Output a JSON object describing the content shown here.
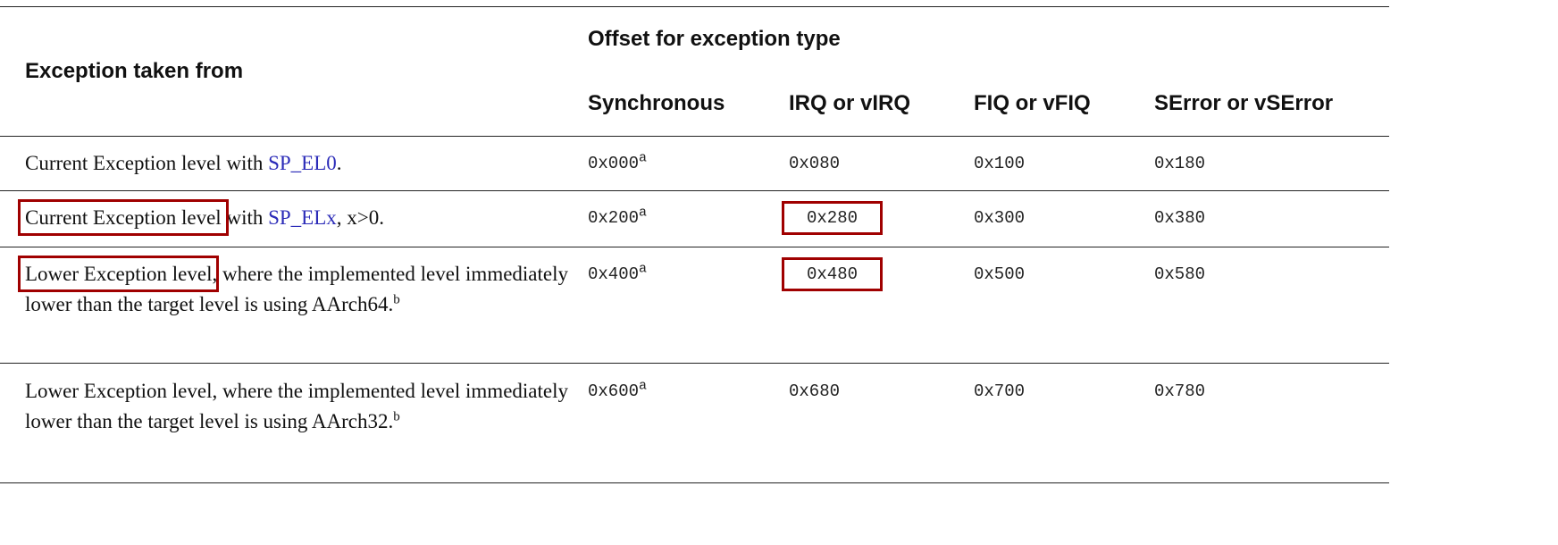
{
  "table": {
    "row_header": "Exception taken from",
    "group_header": "Offset for exception type",
    "columns": [
      "Synchronous",
      "IRQ or vIRQ",
      "FIQ or vFIQ",
      "SError or vSError"
    ],
    "rows": [
      {
        "source": [
          "Current Exception level with ",
          "SP_EL0",
          "."
        ],
        "source_note": null,
        "offsets": [
          "0x000",
          "0x080",
          "0x100",
          "0x180"
        ],
        "sync_note": "a"
      },
      {
        "source": [
          "Current Exception level",
          " with ",
          "SP_ELx",
          ", x>0."
        ],
        "source_note": null,
        "offsets": [
          "0x200",
          "0x280",
          "0x300",
          "0x380"
        ],
        "sync_note": "a"
      },
      {
        "source": [
          "Lower Exception level",
          ", where the implemented level immediately lower than the target level is using AArch64."
        ],
        "source_note": "b",
        "offsets": [
          "0x400",
          "0x480",
          "0x500",
          "0x580"
        ],
        "sync_note": "a"
      },
      {
        "source": [
          "Lower Exception level, where the implemented level immediately lower than the target level is using AArch32."
        ],
        "source_note": "b",
        "offsets": [
          "0x600",
          "0x680",
          "0x700",
          "0x780"
        ],
        "sync_note": "a"
      }
    ]
  }
}
